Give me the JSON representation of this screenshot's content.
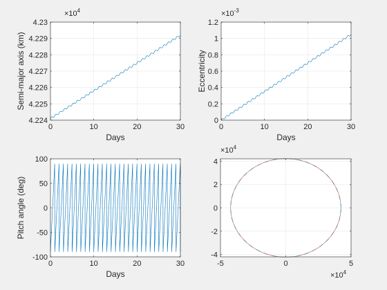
{
  "colors": {
    "figure_bg": "#f0f0f0",
    "axes_bg": "#ffffff",
    "line_blue": "#0072bd",
    "line_orange": "#d95319",
    "grid": "#e6e6e6",
    "axis": "#262626"
  },
  "chart_data": [
    {
      "type": "line",
      "xlabel": "Days",
      "ylabel": "Semi-major axis (km)",
      "exponent_label": "×10",
      "exponent": "4",
      "xlim": [
        0,
        30
      ],
      "ylim": [
        4.224,
        4.23
      ],
      "xticks": [
        "0",
        "10",
        "20",
        "30"
      ],
      "yticks": [
        "4.224",
        "4.225",
        "4.226",
        "4.227",
        "4.228",
        "4.229",
        "4.23"
      ],
      "grid": true,
      "series": [
        {
          "x": [
            0,
            30
          ],
          "y": [
            4.2241,
            4.2292
          ],
          "oscillation": {
            "amplitude": 5e-05,
            "period_days": 1
          }
        }
      ]
    },
    {
      "type": "line",
      "xlabel": "Days",
      "ylabel": "Eccentricity",
      "exponent_label": "×10",
      "exponent": "-3",
      "xlim": [
        0,
        30
      ],
      "ylim": [
        0,
        1.2
      ],
      "xticks": [
        "0",
        "10",
        "20",
        "30"
      ],
      "yticks": [
        "0",
        "0.2",
        "0.4",
        "0.6",
        "0.8",
        "1",
        "1.2"
      ],
      "grid": true,
      "series": [
        {
          "x": [
            0,
            30
          ],
          "y": [
            0.0,
            1.05
          ],
          "oscillation": {
            "amplitude": 0.01,
            "period_days": 1
          }
        }
      ]
    },
    {
      "type": "line",
      "xlabel": "Days",
      "ylabel": "Pitch angle (deg)",
      "xlim": [
        0,
        30
      ],
      "ylim": [
        -100,
        100
      ],
      "xticks": [
        "0",
        "10",
        "20",
        "30"
      ],
      "yticks": [
        "-100",
        "-50",
        "0",
        "50",
        "100"
      ],
      "grid": true,
      "series": [
        {
          "sawtooth": {
            "min": -90,
            "max": 90,
            "period_days": 1.0
          }
        }
      ]
    },
    {
      "type": "line",
      "xlim": [
        -5,
        5
      ],
      "ylim": [
        -4.2,
        4.2
      ],
      "xticks": [
        "-5",
        "0",
        "5"
      ],
      "yticks": [
        "-4",
        "-2",
        "0",
        "2",
        "4"
      ],
      "x_exponent_label": "×10",
      "x_exponent": "4",
      "exponent_label": "×10",
      "exponent": "4",
      "grid": true,
      "series": [
        {
          "circle": {
            "radius": 4.22
          },
          "color": "#d95319"
        },
        {
          "circle": {
            "radius": 4.22
          },
          "color": "#0072bd"
        }
      ]
    }
  ]
}
